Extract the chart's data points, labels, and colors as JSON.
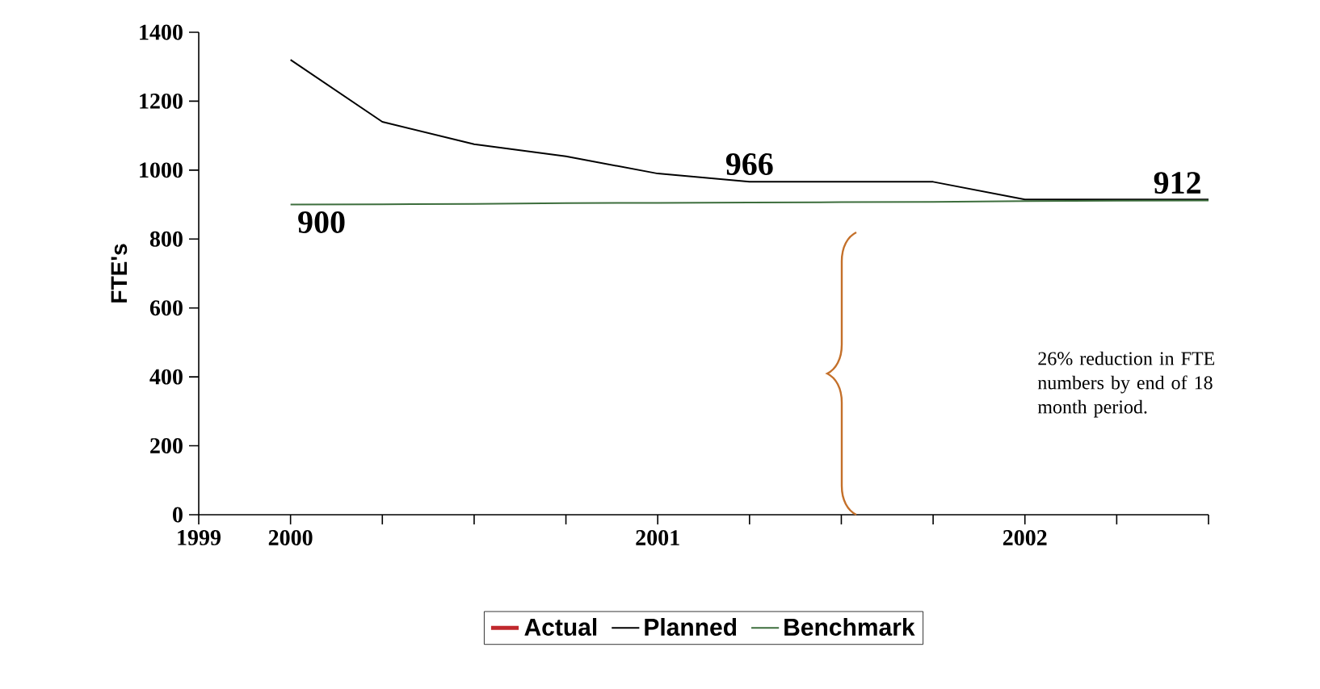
{
  "chart_data": {
    "type": "line",
    "ylabel": "FTE's",
    "categories": [
      "1999",
      "2000",
      null,
      null,
      null,
      "2001",
      null,
      null,
      null,
      "2002",
      null,
      null
    ],
    "series": [
      {
        "name": "Actual",
        "color": "#c0282d",
        "values": [
          null,
          null,
          null,
          null,
          null,
          null,
          null,
          null,
          null,
          null,
          null,
          null
        ]
      },
      {
        "name": "Planned",
        "color": "#000000",
        "values": [
          null,
          1320,
          1140,
          1075,
          1040,
          990,
          966,
          966,
          966,
          915,
          915,
          915
        ],
        "value_labels": [
          null,
          null,
          null,
          null,
          null,
          null,
          "966",
          null,
          null,
          null,
          null,
          null
        ]
      },
      {
        "name": "Benchmark",
        "color": "#3d6e3d",
        "values": [
          null,
          900,
          901,
          902,
          904,
          905,
          906,
          907,
          908,
          910,
          911,
          912
        ],
        "value_labels": [
          null,
          "900",
          null,
          null,
          null,
          null,
          null,
          null,
          null,
          null,
          null,
          "912"
        ]
      }
    ],
    "ylim": [
      0,
      1400
    ],
    "yticks": [
      0,
      200,
      400,
      600,
      800,
      1000,
      1200,
      1400
    ],
    "legend": "bottom",
    "grid": false,
    "marker": "none",
    "line_style": "solid",
    "annotations": [
      "26% reduction in FTE numbers by end of 18 month period."
    ]
  }
}
